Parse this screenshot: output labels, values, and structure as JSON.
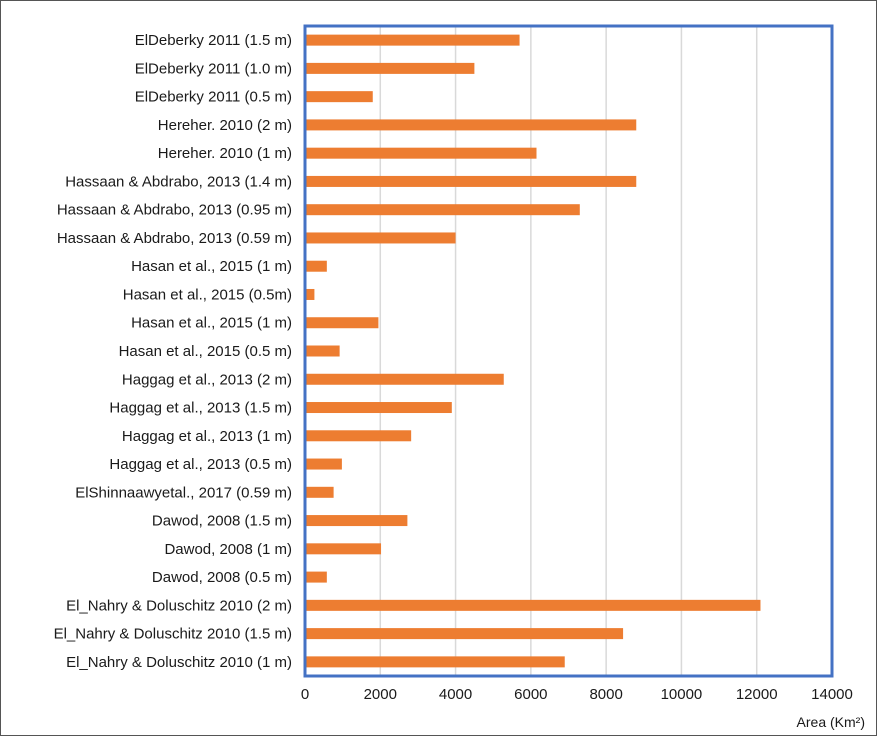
{
  "chart_data": {
    "type": "bar",
    "orientation": "horizontal",
    "categories": [
      "ElDeberky 2011 (1.5 m)",
      "ElDeberky 2011 (1.0 m)",
      "ElDeberky 2011 (0.5 m)",
      "Hereher. 2010 (2 m)",
      "Hereher. 2010 (1 m)",
      "Hassaan & Abdrabo, 2013 (1.4 m)",
      "Hassaan & Abdrabo, 2013 (0.95 m)",
      "Hassaan & Abdrabo, 2013 (0.59 m)",
      "Hasan et al., 2015 (1 m)",
      "Hasan et al., 2015 (0.5m)",
      "Hasan et al., 2015 (1 m)",
      "Hasan et al., 2015 (0.5 m)",
      "Haggag et al., 2013 (2 m)",
      "Haggag et al., 2013 (1.5 m)",
      "Haggag et al., 2013 (1 m)",
      "Haggag et al., 2013 (0.5 m)",
      "ElShinnaawyetal., 2017 (0.59 m)",
      "Dawod, 2008 (1.5 m)",
      "Dawod, 2008 (1 m)",
      "Dawod, 2008 (0.5 m)",
      "El_Nahry & Doluschitz 2010 (2 m)",
      "El_Nahry & Doluschitz 2010 (1.5 m)",
      "El_Nahry & Doluschitz 2010 (1 m)"
    ],
    "values": [
      5700,
      4500,
      1800,
      8800,
      6150,
      8800,
      7300,
      4000,
      580,
      250,
      1950,
      920,
      5280,
      3900,
      2820,
      980,
      760,
      2720,
      2020,
      580,
      12100,
      8450,
      6900
    ],
    "xlabel": "Area (Km²)",
    "ylabel": "",
    "xlim": [
      0,
      14000
    ],
    "xticks": [
      "0",
      "2000",
      "4000",
      "6000",
      "8000",
      "10000",
      "12000",
      "14000"
    ],
    "grid": "vertical",
    "colors": {
      "bar": "#ed7d31",
      "grid": "#d9d9d9",
      "plot_border": "#4472c4",
      "frame": "#555555"
    }
  }
}
